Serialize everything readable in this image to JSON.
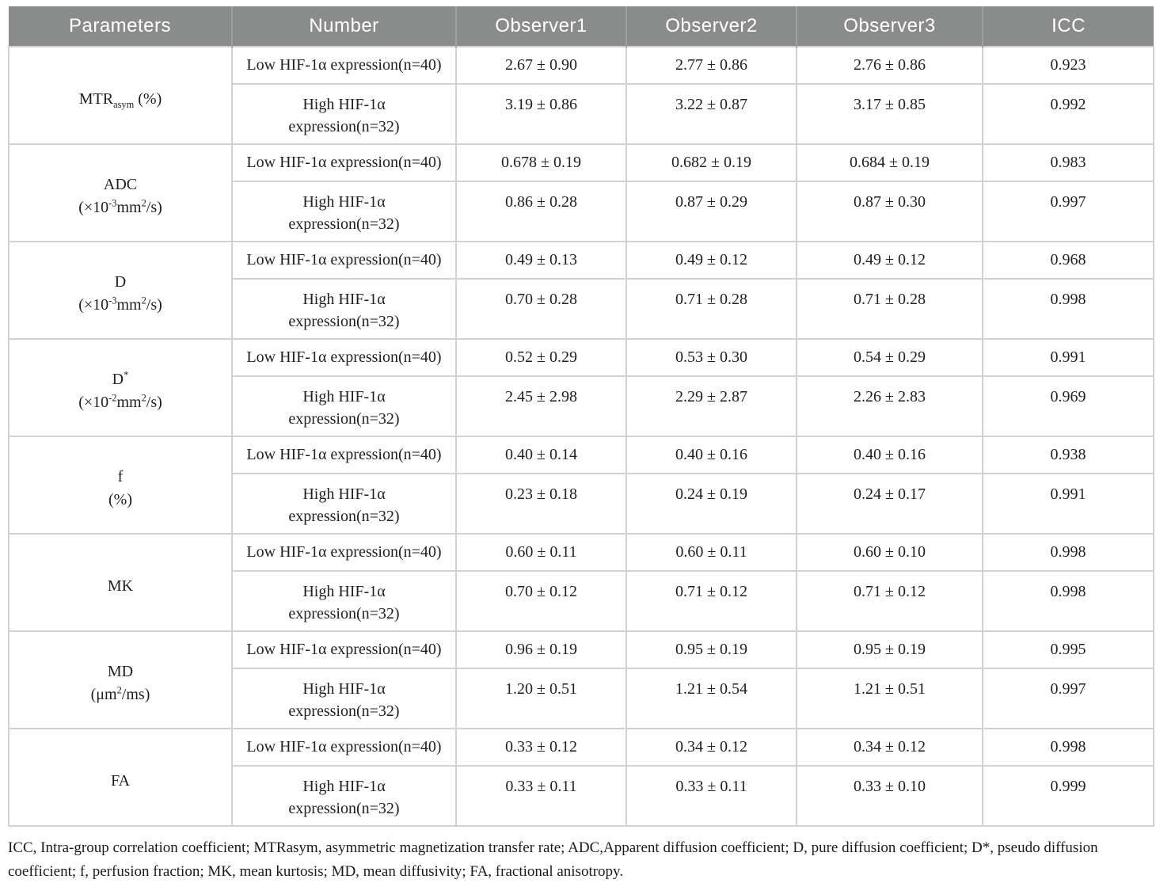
{
  "colors": {
    "header_bg": "#8a8c8c",
    "header_text": "#ffffff",
    "header_divider": "#9fa1a1",
    "grid_border": "#d2d2d2",
    "body_text": "#1f1f1f"
  },
  "table": {
    "headers": [
      "Parameters",
      "Number",
      "Observer1",
      "Observer2",
      "Observer3",
      "ICC"
    ],
    "number_labels": {
      "low": "Low HIF-1α expression(n=40)",
      "high_lines": [
        "High HIF-1α",
        "expression(n=32)"
      ]
    },
    "groups": [
      {
        "parameter_lines": [
          [
            {
              "t": "MTR"
            },
            {
              "t": "asym",
              "s": "sub"
            },
            {
              "t": " (%)"
            }
          ]
        ],
        "low": {
          "observers": [
            "2.67 ± 0.90",
            "2.77 ± 0.86",
            "2.76 ± 0.86"
          ],
          "icc": "0.923"
        },
        "high": {
          "observers": [
            "3.19 ± 0.86",
            "3.22 ± 0.87",
            "3.17 ± 0.85"
          ],
          "icc": "0.992"
        }
      },
      {
        "parameter_lines": [
          [
            {
              "t": "ADC"
            }
          ],
          [
            {
              "t": "(×10"
            },
            {
              "t": "-3",
              "s": "sup"
            },
            {
              "t": "mm"
            },
            {
              "t": "2",
              "s": "sup"
            },
            {
              "t": "/s)"
            }
          ]
        ],
        "low": {
          "observers": [
            "0.678 ± 0.19",
            "0.682 ± 0.19",
            "0.684 ± 0.19"
          ],
          "icc": "0.983"
        },
        "high": {
          "observers": [
            "0.86 ± 0.28",
            "0.87 ± 0.29",
            "0.87 ± 0.30"
          ],
          "icc": "0.997"
        }
      },
      {
        "parameter_lines": [
          [
            {
              "t": "D"
            }
          ],
          [
            {
              "t": "(×10"
            },
            {
              "t": "-3",
              "s": "sup"
            },
            {
              "t": "mm"
            },
            {
              "t": "2",
              "s": "sup"
            },
            {
              "t": "/s)"
            }
          ]
        ],
        "low": {
          "observers": [
            "0.49 ± 0.13",
            "0.49 ± 0.12",
            "0.49 ± 0.12"
          ],
          "icc": "0.968"
        },
        "high": {
          "observers": [
            "0.70 ± 0.28",
            "0.71 ± 0.28",
            "0.71 ± 0.28"
          ],
          "icc": "0.998"
        }
      },
      {
        "parameter_lines": [
          [
            {
              "t": "D"
            },
            {
              "t": "*",
              "s": "sup"
            }
          ],
          [
            {
              "t": "(×10"
            },
            {
              "t": "-2",
              "s": "sup"
            },
            {
              "t": "mm"
            },
            {
              "t": "2",
              "s": "sup"
            },
            {
              "t": "/s)"
            }
          ]
        ],
        "low": {
          "observers": [
            "0.52 ± 0.29",
            "0.53 ± 0.30",
            "0.54 ± 0.29"
          ],
          "icc": "0.991"
        },
        "high": {
          "observers": [
            "2.45 ± 2.98",
            "2.29 ± 2.87",
            "2.26 ± 2.83"
          ],
          "icc": "0.969"
        }
      },
      {
        "parameter_lines": [
          [
            {
              "t": "f"
            }
          ],
          [
            {
              "t": "(%)"
            }
          ]
        ],
        "low": {
          "observers": [
            "0.40 ± 0.14",
            "0.40 ± 0.16",
            "0.40 ± 0.16"
          ],
          "icc": "0.938"
        },
        "high": {
          "observers": [
            "0.23 ± 0.18",
            "0.24 ± 0.19",
            "0.24 ± 0.17"
          ],
          "icc": "0.991"
        }
      },
      {
        "parameter_lines": [
          [
            {
              "t": "MK"
            }
          ]
        ],
        "low": {
          "observers": [
            "0.60 ± 0.11",
            "0.60 ± 0.11",
            "0.60 ± 0.10"
          ],
          "icc": "0.998"
        },
        "high": {
          "observers": [
            "0.70 ± 0.12",
            "0.71 ± 0.12",
            "0.71 ± 0.12"
          ],
          "icc": "0.998"
        }
      },
      {
        "parameter_lines": [
          [
            {
              "t": "MD"
            }
          ],
          [
            {
              "t": "(μm"
            },
            {
              "t": "2",
              "s": "sup"
            },
            {
              "t": "/ms)"
            }
          ]
        ],
        "low": {
          "observers": [
            "0.96 ± 0.19",
            "0.95 ± 0.19",
            "0.95 ± 0.19"
          ],
          "icc": "0.995"
        },
        "high": {
          "observers": [
            "1.20 ± 0.51",
            "1.21 ± 0.54",
            "1.21 ± 0.51"
          ],
          "icc": "0.997"
        }
      },
      {
        "parameter_lines": [
          [
            {
              "t": "FA"
            }
          ]
        ],
        "low": {
          "observers": [
            "0.33 ± 0.12",
            "0.34 ± 0.12",
            "0.34 ± 0.12"
          ],
          "icc": "0.998"
        },
        "high": {
          "observers": [
            "0.33 ± 0.11",
            "0.33 ± 0.11",
            "0.33 ± 0.10"
          ],
          "icc": "0.999"
        }
      }
    ]
  },
  "footnote": "ICC, Intra-group correlation coefficient; MTRasym, asymmetric magnetization transfer rate; ADC,Apparent diffusion coefficient; D, pure diffusion coefficient; D*, pseudo diffusion coefficient; f, perfusion fraction; MK, mean kurtosis; MD, mean diffusivity; FA, fractional anisotropy."
}
